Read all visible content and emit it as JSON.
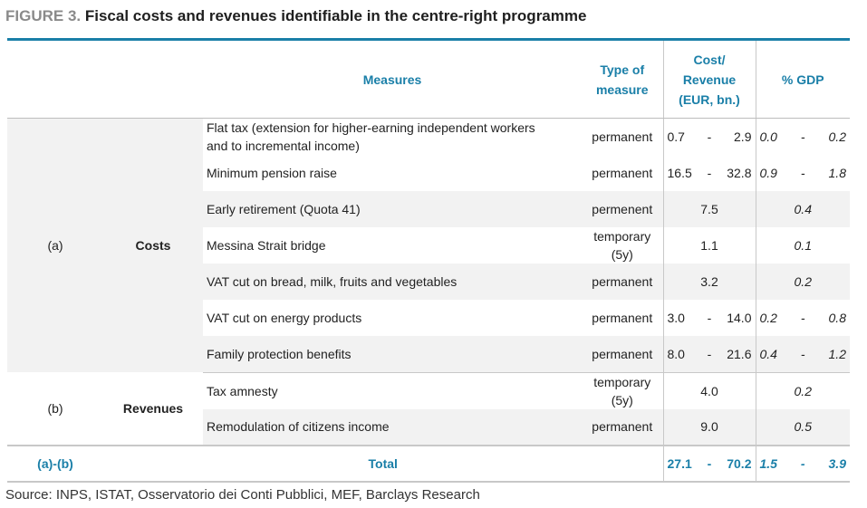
{
  "title": {
    "prefix": "FIGURE 3.",
    "main": "Fiscal costs and revenues identifiable in the centre-right programme"
  },
  "headers": {
    "measures": "Measures",
    "type_line1": "Type of",
    "type_line2": "measure",
    "cost_line1": "Cost/",
    "cost_line2": "Revenue",
    "cost_line3": "(EUR, bn.)",
    "gdp": "% GDP"
  },
  "groups": {
    "costs": {
      "code": "(a)",
      "label": "Costs"
    },
    "revenues": {
      "code": "(b)",
      "label": "Revenues"
    }
  },
  "rows": [
    {
      "measure_line1": "Flat tax (extension for higher-earning independent workers",
      "measure_line2": "and to incremental income)",
      "type_line1": "permanent",
      "type_line2": "",
      "cost_lo": "0.7",
      "cost_hi": "2.9",
      "gdp_lo": "0.0",
      "gdp_hi": "0.2"
    },
    {
      "measure_line1": "Minimum pension raise",
      "measure_line2": "",
      "type_line1": "permanent",
      "type_line2": "",
      "cost_lo": "16.5",
      "cost_hi": "32.8",
      "gdp_lo": "0.9",
      "gdp_hi": "1.8"
    },
    {
      "measure_line1": "Early retirement (Quota 41)",
      "measure_line2": "",
      "type_line1": "permenent",
      "type_line2": "",
      "cost": "7.5",
      "gdp": "0.4"
    },
    {
      "measure_line1": "Messina Strait bridge",
      "measure_line2": "",
      "type_line1": "temporary",
      "type_line2": "(5y)",
      "cost": "1.1",
      "gdp": "0.1"
    },
    {
      "measure_line1": "VAT cut on bread, milk, fruits and vegetables",
      "measure_line2": "",
      "type_line1": "permanent",
      "type_line2": "",
      "cost": "3.2",
      "gdp": "0.2"
    },
    {
      "measure_line1": "VAT cut on energy products",
      "measure_line2": "",
      "type_line1": "permanent",
      "type_line2": "",
      "cost_lo": "3.0",
      "cost_hi": "14.0",
      "gdp_lo": "0.2",
      "gdp_hi": "0.8"
    },
    {
      "measure_line1": "Family protection benefits",
      "measure_line2": "",
      "type_line1": "permanent",
      "type_line2": "",
      "cost_lo": "8.0",
      "cost_hi": "21.6",
      "gdp_lo": "0.4",
      "gdp_hi": "1.2"
    },
    {
      "measure_line1": "Tax amnesty",
      "measure_line2": "",
      "type_line1": "temporary",
      "type_line2": "(5y)",
      "cost": "4.0",
      "gdp": "0.2"
    },
    {
      "measure_line1": "Remodulation of citizens income",
      "measure_line2": "",
      "type_line1": "permanent",
      "type_line2": "",
      "cost": "9.0",
      "gdp": "0.5"
    }
  ],
  "total": {
    "code": "(a)-(b)",
    "label": "Total",
    "cost_lo": "27.1",
    "cost_hi": "70.2",
    "gdp_lo": "1.5",
    "gdp_hi": "3.9"
  },
  "range_dash": "-",
  "source": "Source: INPS, ISTAT, Osservatorio dei Conti Pubblici, MEF, Barclays Research"
}
